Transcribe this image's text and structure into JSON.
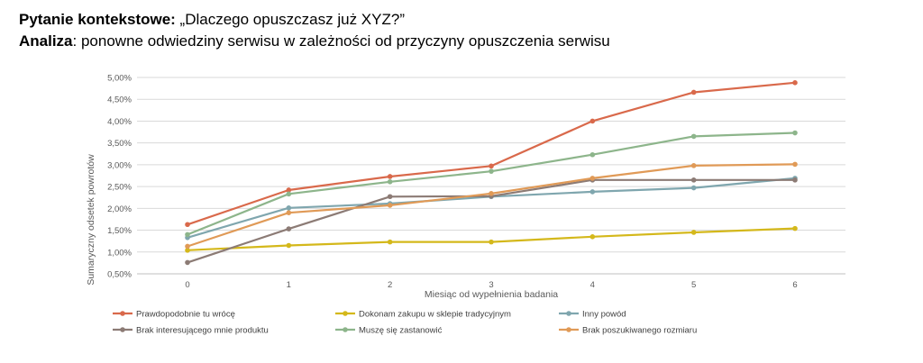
{
  "header": {
    "line1_bold": "Pytanie kontekstowe:",
    "line1_text": " „Dlaczego opuszczasz już XYZ?”",
    "line2_bold": "Analiza",
    "line2_text": ": ponowne odwiedziny serwisu w zależności od przyczyny opuszczenia serwisu"
  },
  "chart_data": {
    "type": "line",
    "xlabel": "Miesiąc od wypełnienia badania",
    "ylabel": "Sumaryczny odsetek powrotów",
    "x": [
      0,
      1,
      2,
      3,
      4,
      5,
      6
    ],
    "ylim": [
      0.005,
      0.05
    ],
    "yticks": [
      "0,50%",
      "1,00%",
      "1,50%",
      "2,00%",
      "2,50%",
      "3,00%",
      "3,50%",
      "4,00%",
      "4,50%",
      "5,00%"
    ],
    "xticks": [
      "0",
      "1",
      "2",
      "3",
      "4",
      "5",
      "6"
    ],
    "grid": true,
    "legend": "bottom",
    "series": [
      {
        "name": "Prawdopodobnie tu wrócę",
        "color": "#D9694B",
        "values": [
          0.0163,
          0.0242,
          0.0273,
          0.0297,
          0.04,
          0.0466,
          0.0488
        ]
      },
      {
        "name": "Dokonam zakupu w sklepie tradycyjnym",
        "color": "#D4B81B",
        "values": [
          0.0104,
          0.0115,
          0.0123,
          0.0123,
          0.0135,
          0.0145,
          0.0154
        ]
      },
      {
        "name": "Inny powód",
        "color": "#7FA6AE",
        "values": [
          0.0133,
          0.0201,
          0.0211,
          0.0227,
          0.0238,
          0.0247,
          0.0269
        ]
      },
      {
        "name": "Brak interesującego mnie produktu",
        "color": "#8C7B75",
        "values": [
          0.0076,
          0.0153,
          0.0227,
          0.0228,
          0.0265,
          0.0265,
          0.0265
        ]
      },
      {
        "name": "Muszę się zastanowić",
        "color": "#8DB58B",
        "values": [
          0.014,
          0.0233,
          0.0261,
          0.0285,
          0.0323,
          0.0365,
          0.0373
        ]
      },
      {
        "name": "Brak poszukiwanego rozmiaru",
        "color": "#E09A57",
        "values": [
          0.0113,
          0.019,
          0.0207,
          0.0234,
          0.0269,
          0.0298,
          0.0301
        ]
      }
    ]
  }
}
